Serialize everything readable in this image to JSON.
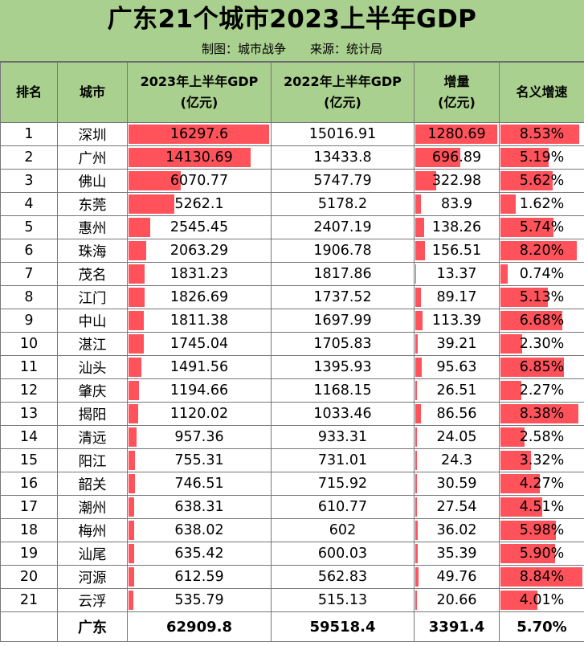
{
  "title": "广东21个城市2023上半年GDP",
  "subtitle": {
    "maker": "制图：城市战争",
    "source": "来源：统计局"
  },
  "headers": {
    "rank": "排名",
    "city": "城市",
    "gdp2023_line1": "2023年上半年GDP",
    "gdp2023_line2": "(亿元)",
    "gdp2022_line1": "2022年上半年GDP",
    "gdp2022_line2": "(亿元)",
    "increase_line1": "增量",
    "increase_line2": "(亿元)",
    "growth": "名义增速"
  },
  "colors": {
    "header_bg": "#a9d08e",
    "bar": "#ff525b",
    "border": "#777777"
  },
  "chart_data": {
    "type": "table",
    "title": "广东21个城市2023上半年GDP",
    "columns": [
      "排名",
      "城市",
      "2023年上半年GDP (亿元)",
      "2022年上半年GDP (亿元)",
      "增量 (亿元)",
      "名义增速"
    ],
    "rows": [
      {
        "rank": "1",
        "city": "深圳",
        "gdp2023": "16297.6",
        "gdp2022": "15016.91",
        "increase": "1280.69",
        "growth": "8.53%"
      },
      {
        "rank": "2",
        "city": "广州",
        "gdp2023": "14130.69",
        "gdp2022": "13433.8",
        "increase": "696.89",
        "growth": "5.19%"
      },
      {
        "rank": "3",
        "city": "佛山",
        "gdp2023": "6070.77",
        "gdp2022": "5747.79",
        "increase": "322.98",
        "growth": "5.62%"
      },
      {
        "rank": "4",
        "city": "东莞",
        "gdp2023": "5262.1",
        "gdp2022": "5178.2",
        "increase": "83.9",
        "growth": "1.62%"
      },
      {
        "rank": "5",
        "city": "惠州",
        "gdp2023": "2545.45",
        "gdp2022": "2407.19",
        "increase": "138.26",
        "growth": "5.74%"
      },
      {
        "rank": "6",
        "city": "珠海",
        "gdp2023": "2063.29",
        "gdp2022": "1906.78",
        "increase": "156.51",
        "growth": "8.20%"
      },
      {
        "rank": "7",
        "city": "茂名",
        "gdp2023": "1831.23",
        "gdp2022": "1817.86",
        "increase": "13.37",
        "growth": "0.74%"
      },
      {
        "rank": "8",
        "city": "江门",
        "gdp2023": "1826.69",
        "gdp2022": "1737.52",
        "increase": "89.17",
        "growth": "5.13%"
      },
      {
        "rank": "9",
        "city": "中山",
        "gdp2023": "1811.38",
        "gdp2022": "1697.99",
        "increase": "113.39",
        "growth": "6.68%"
      },
      {
        "rank": "10",
        "city": "湛江",
        "gdp2023": "1745.04",
        "gdp2022": "1705.83",
        "increase": "39.21",
        "growth": "2.30%"
      },
      {
        "rank": "11",
        "city": "汕头",
        "gdp2023": "1491.56",
        "gdp2022": "1395.93",
        "increase": "95.63",
        "growth": "6.85%"
      },
      {
        "rank": "12",
        "city": "肇庆",
        "gdp2023": "1194.66",
        "gdp2022": "1168.15",
        "increase": "26.51",
        "growth": "2.27%"
      },
      {
        "rank": "13",
        "city": "揭阳",
        "gdp2023": "1120.02",
        "gdp2022": "1033.46",
        "increase": "86.56",
        "growth": "8.38%"
      },
      {
        "rank": "14",
        "city": "清远",
        "gdp2023": "957.36",
        "gdp2022": "933.31",
        "increase": "24.05",
        "growth": "2.58%"
      },
      {
        "rank": "15",
        "city": "阳江",
        "gdp2023": "755.31",
        "gdp2022": "731.01",
        "increase": "24.3",
        "growth": "3.32%"
      },
      {
        "rank": "16",
        "city": "韶关",
        "gdp2023": "746.51",
        "gdp2022": "715.92",
        "increase": "30.59",
        "growth": "4.27%"
      },
      {
        "rank": "17",
        "city": "潮州",
        "gdp2023": "638.31",
        "gdp2022": "610.77",
        "increase": "27.54",
        "growth": "4.51%"
      },
      {
        "rank": "18",
        "city": "梅州",
        "gdp2023": "638.02",
        "gdp2022": "602",
        "increase": "36.02",
        "growth": "5.98%"
      },
      {
        "rank": "19",
        "city": "汕尾",
        "gdp2023": "635.42",
        "gdp2022": "600.03",
        "increase": "35.39",
        "growth": "5.90%"
      },
      {
        "rank": "20",
        "city": "河源",
        "gdp2023": "612.59",
        "gdp2022": "562.83",
        "increase": "49.76",
        "growth": "8.84%"
      },
      {
        "rank": "21",
        "city": "云浮",
        "gdp2023": "535.79",
        "gdp2022": "515.13",
        "increase": "20.66",
        "growth": "4.01%"
      }
    ],
    "total": {
      "city": "广东",
      "gdp2023": "62909.8",
      "gdp2022": "59518.4",
      "increase": "3391.4",
      "growth": "5.70%"
    }
  }
}
